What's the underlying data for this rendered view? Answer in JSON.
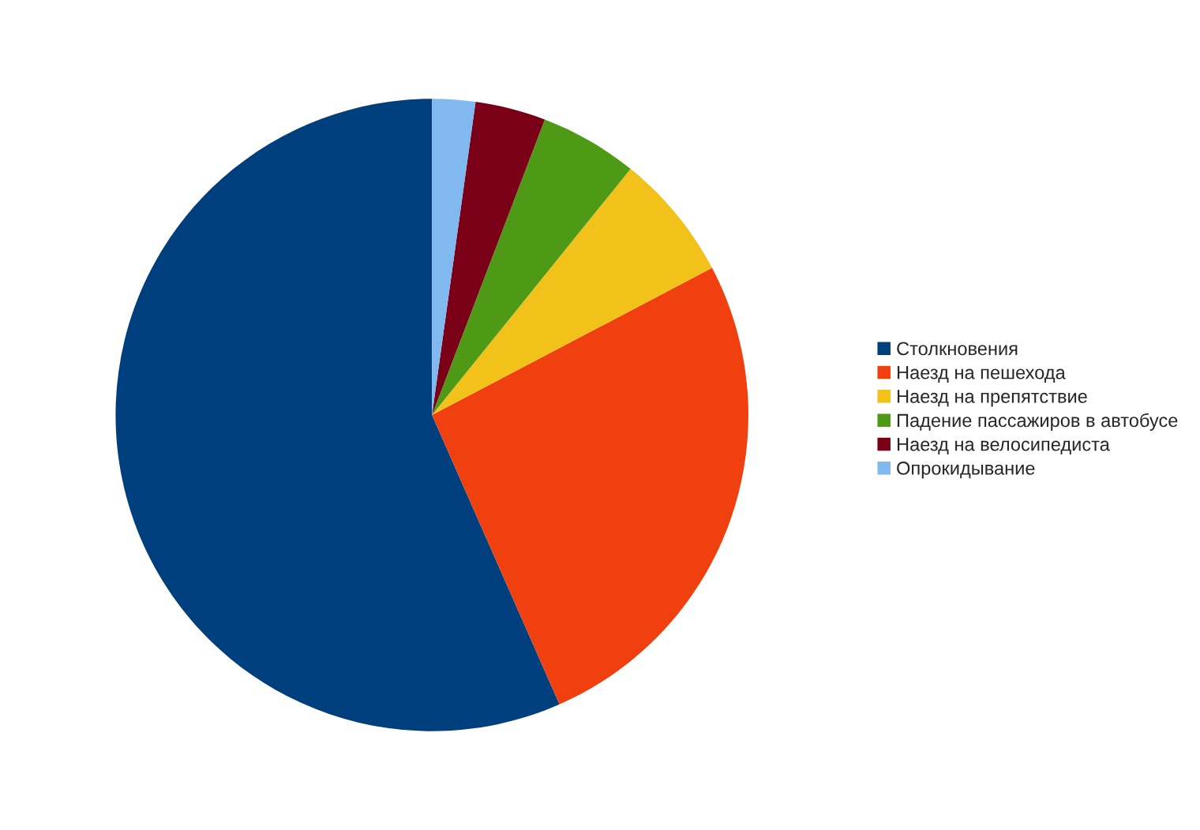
{
  "chart_data": {
    "type": "pie",
    "categories": [
      "Столкновения",
      "Наезд на пешехода",
      "Наезд на препятствие",
      "Падение пассажиров в автобусе",
      "Наезд на велосипедиста",
      "Опрокидывание"
    ],
    "values": [
      56.6,
      26.1,
      6.5,
      5.0,
      3.6,
      2.2
    ],
    "colors": [
      "#003f7d",
      "#f04010",
      "#f2c21a",
      "#4e9a16",
      "#7a0018",
      "#80b8ef"
    ],
    "legend": "right"
  }
}
